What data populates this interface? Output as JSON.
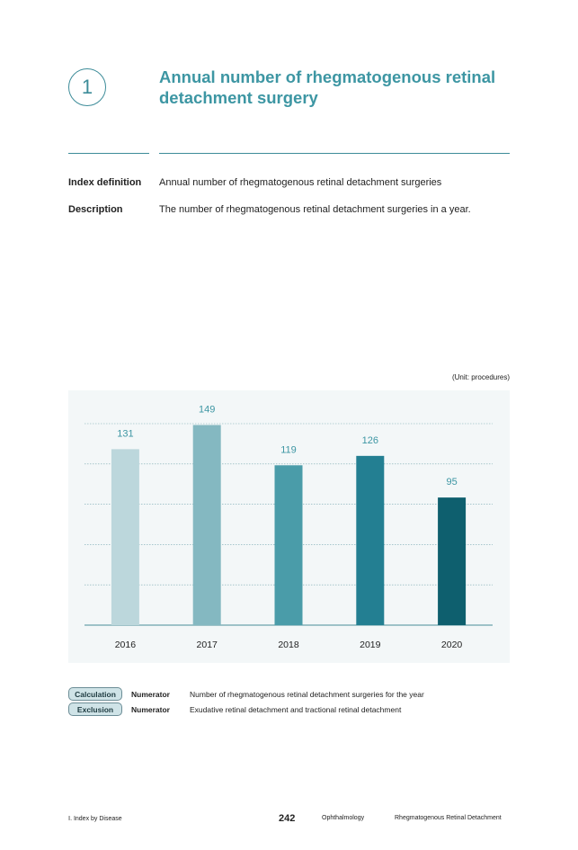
{
  "header": {
    "number": "1",
    "title_line1": "Annual number of rhegmatogenous retinal",
    "title_line2": "detachment surgery"
  },
  "definition": {
    "index_label": "Index definition",
    "index_text": "Annual number of rhegmatogenous retinal detachment surgeries",
    "description_label": "Description",
    "description_text": "The number of rhegmatogenous retinal detachment surgeries in a year."
  },
  "unit_label": "(Unit: procedures)",
  "chart_data": {
    "type": "bar",
    "categories": [
      "2016",
      "2017",
      "2018",
      "2019",
      "2020"
    ],
    "values": [
      131,
      149,
      119,
      126,
      95
    ],
    "bar_colors": [
      "#bcd7dc",
      "#84b8c1",
      "#4a9ca9",
      "#237f92",
      "#0e5f6e"
    ],
    "label_color": "#3d96a3",
    "title": "",
    "xlabel": "",
    "ylabel": "",
    "ylim": [
      0,
      150
    ],
    "grid": true,
    "show_y_axis": false
  },
  "notes": {
    "calculation_tag": "Calculation",
    "calculation_label": "Numerator",
    "calculation_text": "Number of rhegmatogenous retinal detachment surgeries for the year",
    "exclusion_tag": "Exclusion",
    "exclusion_label": "Numerator",
    "exclusion_text": "Exudative retinal detachment and tractional retinal detachment"
  },
  "footer": {
    "section": "Ⅰ. Index by Disease",
    "page_number": "242",
    "department": "Ophthalmology",
    "topic": "Rhegmatogenous Retinal Detachment"
  }
}
